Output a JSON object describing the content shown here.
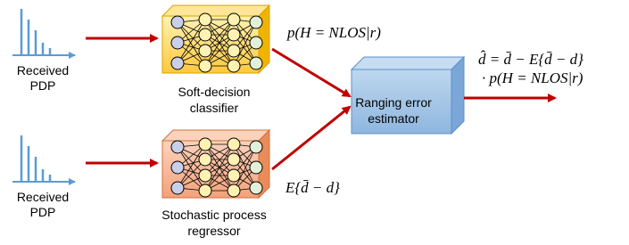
{
  "nodes": [
    {
      "lines": [
        "Received",
        "PDP"
      ]
    },
    {
      "lines": [
        "Received",
        "PDP"
      ]
    },
    {
      "lines": [
        "Soft-decision",
        "classifier"
      ]
    },
    {
      "lines": [
        "Stochastic process",
        "regressor"
      ]
    },
    {
      "lines": [
        "Ranging error",
        "estimator"
      ]
    }
  ],
  "edge_labels": [
    "p(H = NLOS|r)",
    "E{d̄ − d}"
  ],
  "output": [
    "d̂ = d̄ − E{d̄ − d}",
    "· p(H = NLOS|r)"
  ]
}
